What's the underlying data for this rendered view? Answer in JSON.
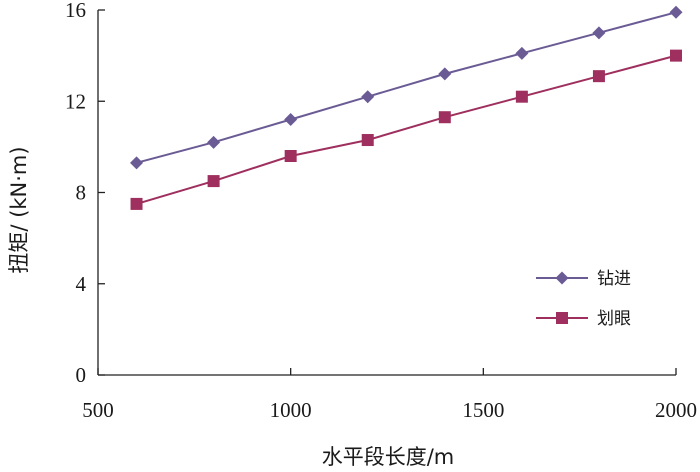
{
  "chart_data": {
    "type": "line",
    "title": "",
    "xlabel": "水平段长度/m",
    "ylabel": "扭矩/ (kN·m)",
    "xlim": [
      500,
      2000
    ],
    "ylim": [
      0,
      16
    ],
    "xticks": [
      500,
      1000,
      1500,
      2000
    ],
    "yticks": [
      0,
      4,
      8,
      12,
      16
    ],
    "x": [
      600,
      800,
      1000,
      1200,
      1400,
      1600,
      1800,
      2000
    ],
    "series": [
      {
        "name": "钻进",
        "marker": "diamond",
        "color": "#6B5B95",
        "values": [
          9.3,
          10.2,
          11.2,
          12.2,
          13.2,
          14.1,
          15.0,
          15.9
        ]
      },
      {
        "name": "划眼",
        "marker": "square",
        "color": "#9E2F5E",
        "values": [
          7.5,
          8.5,
          9.6,
          10.3,
          11.3,
          12.2,
          13.1,
          14.0
        ]
      }
    ],
    "grid": false,
    "legend": "right"
  }
}
